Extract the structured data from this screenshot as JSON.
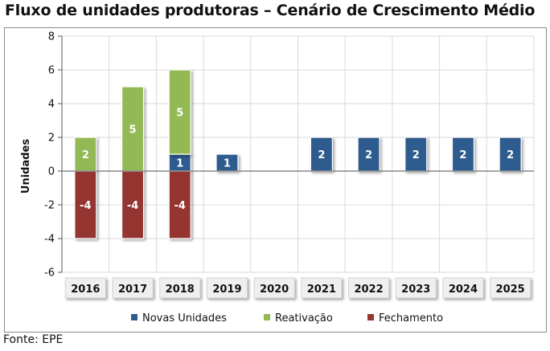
{
  "title": "Fluxo de unidades produtoras – Cenário de Crescimento Médio",
  "source": "Fonte: EPE",
  "chart_data": {
    "type": "bar",
    "stacked": true,
    "categories": [
      "2016",
      "2017",
      "2018",
      "2019",
      "2020",
      "2021",
      "2022",
      "2023",
      "2024",
      "2025"
    ],
    "series": [
      {
        "name": "Novas Unidades",
        "color": "#2f5b8e",
        "values": [
          0,
          0,
          1,
          1,
          0,
          2,
          2,
          2,
          2,
          2
        ]
      },
      {
        "name": "Reativação",
        "color": "#93b954",
        "values": [
          2,
          5,
          5,
          0,
          0,
          0,
          0,
          0,
          0,
          0
        ]
      },
      {
        "name": "Fechamento",
        "color": "#953533",
        "values": [
          -4,
          -4,
          -4,
          0,
          0,
          0,
          0,
          0,
          0,
          0
        ]
      }
    ],
    "xlabel": "",
    "ylabel": "Unidades",
    "ylim": [
      -6,
      8
    ],
    "yticks": [
      8,
      6,
      4,
      2,
      0,
      -2,
      -4,
      -6
    ],
    "grid": true,
    "legend_position": "bottom"
  }
}
